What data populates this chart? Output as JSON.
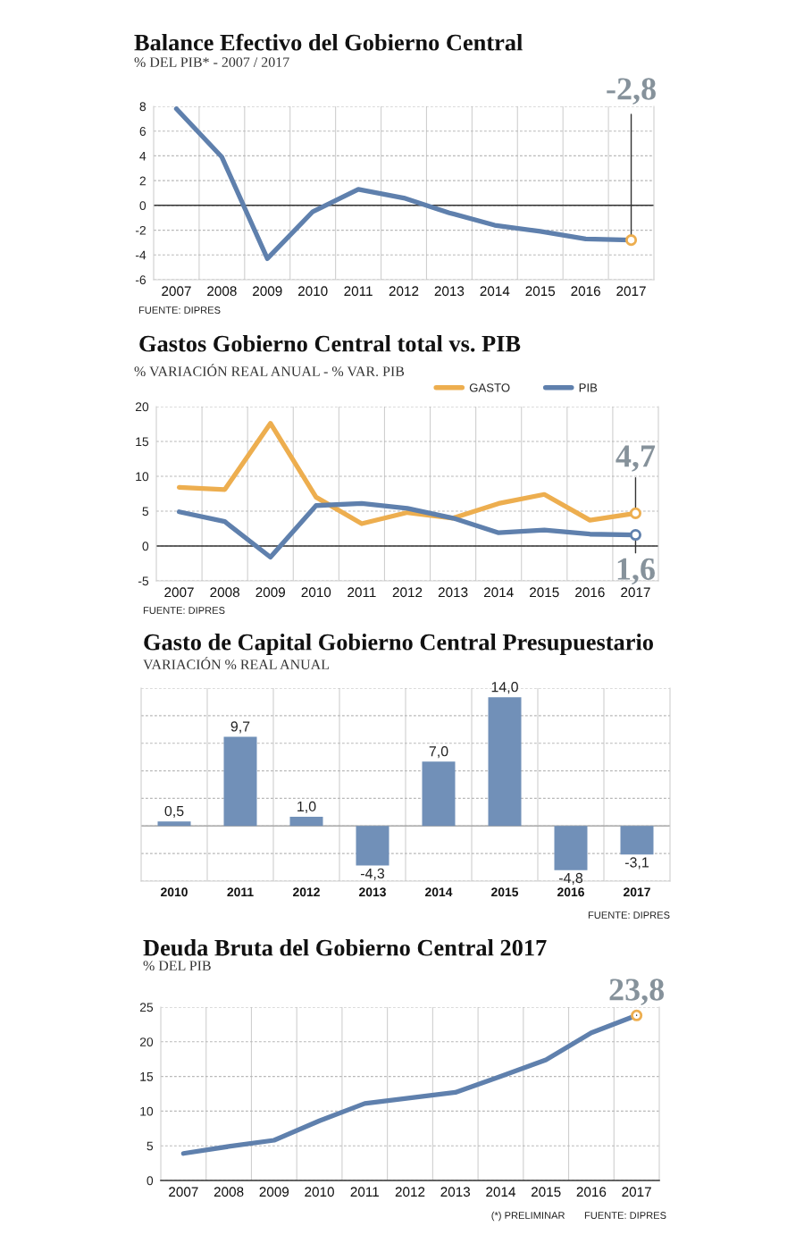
{
  "chart_data": [
    {
      "type": "line",
      "title": "Balance Efectivo del Gobierno Central",
      "subtitle": "% DEL PIB* - 2007 / 2017",
      "categories": [
        "2007",
        "2008",
        "2009",
        "2010",
        "2011",
        "2012",
        "2013",
        "2014",
        "2015",
        "2016",
        "2017"
      ],
      "series": [
        {
          "color": "#5f80ad",
          "values": [
            7.8,
            3.9,
            -4.3,
            -0.5,
            1.3,
            0.6,
            -0.6,
            -1.6,
            -2.1,
            -2.7,
            -2.8
          ]
        },
        {
          "type": "scatter",
          "color": "#edae4f",
          "values": [
            null,
            null,
            null,
            null,
            null,
            null,
            null,
            null,
            null,
            null,
            -2.8
          ],
          "marker": "circle"
        }
      ],
      "ylim": [
        -6,
        8
      ],
      "yticks": [
        -6,
        -4,
        -2,
        0,
        2,
        4,
        6,
        8
      ],
      "grid": true,
      "ref_lines": [
        {
          "axis": "y",
          "value": 0,
          "color": "#333333"
        }
      ],
      "annotations": [
        {
          "text": "-2,8",
          "x": "2017",
          "y": -2.8
        },
        "FUENTE: DIPRES"
      ]
    },
    {
      "type": "line",
      "title": "Gastos Gobierno Central total vs. PIB",
      "subtitle": "% VARIACIÓN REAL ANUAL - % VAR. PIB",
      "categories": [
        "2007",
        "2008",
        "2009",
        "2010",
        "2011",
        "2012",
        "2013",
        "2014",
        "2015",
        "2016",
        "2017"
      ],
      "series": [
        {
          "name": "GASTO",
          "color": "#edae4f",
          "values": [
            8.4,
            8.1,
            17.6,
            7.0,
            3.2,
            4.8,
            4.0,
            6.1,
            7.4,
            3.7,
            4.7
          ]
        },
        {
          "name": "PIB",
          "color": "#5f80ad",
          "values": [
            4.9,
            3.5,
            -1.6,
            5.8,
            6.1,
            5.4,
            4.0,
            1.9,
            2.3,
            1.7,
            1.6
          ]
        },
        {
          "type": "scatter",
          "color": "#edae4f",
          "values": [
            null,
            null,
            null,
            null,
            null,
            null,
            null,
            null,
            null,
            null,
            4.7
          ],
          "marker": "circle"
        },
        {
          "type": "scatter",
          "color": "#5f80ad",
          "values": [
            null,
            null,
            null,
            null,
            null,
            null,
            null,
            null,
            null,
            null,
            1.6
          ],
          "marker": "circle"
        }
      ],
      "ylim": [
        -5,
        20
      ],
      "yticks": [
        -5,
        0,
        5,
        10,
        15,
        20
      ],
      "grid": true,
      "legend": "top right",
      "ref_lines": [
        {
          "axis": "y",
          "value": 0,
          "color": "#333333"
        }
      ],
      "annotations": [
        {
          "text": "4,7",
          "x": "2017",
          "y": 4.7
        },
        {
          "text": "1,6",
          "x": "2017",
          "y": 1.6
        },
        "FUENTE: DIPRES"
      ]
    },
    {
      "type": "bar",
      "title": "Gasto de Capital Gobierno Central Presupuestario",
      "subtitle": "VARIACIÓN % REAL ANUAL",
      "categories": [
        "2010",
        "2011",
        "2012",
        "2013",
        "2014",
        "2015",
        "2016",
        "2017"
      ],
      "values": [
        0.5,
        9.7,
        1.0,
        -4.3,
        7.0,
        14.0,
        -4.8,
        -3.1
      ],
      "value_labels": [
        "0,5",
        "9,7",
        "1,0",
        "-4,3",
        "7,0",
        "14,0",
        "-4,8",
        "-3,1"
      ],
      "color": "#7190b8",
      "ylim": [
        -6,
        15
      ],
      "yticks": [
        {
          "value": -6,
          "label": null
        },
        {
          "value": -3,
          "label": null
        },
        {
          "value": 0,
          "label": null
        },
        {
          "value": 3,
          "label": null
        },
        {
          "value": 6,
          "label": null
        },
        {
          "value": 9,
          "label": null
        },
        {
          "value": 12,
          "label": null
        },
        {
          "value": 15,
          "label": null
        }
      ],
      "tick_labels": "x",
      "grid": true,
      "ref_lines": [
        {
          "axis": "y",
          "value": 0,
          "color": "#a8a8a8"
        }
      ],
      "annotations": [
        "FUENTE: DIPRES"
      ]
    },
    {
      "type": "line",
      "title": "Deuda Bruta del Gobierno Central 2017",
      "subtitle": "% DEL PIB",
      "categories": [
        "2007",
        "2008",
        "2009",
        "2010",
        "2011",
        "2012",
        "2013",
        "2014",
        "2015",
        "2016",
        "2017"
      ],
      "series": [
        {
          "color": "#5f80ad",
          "values": [
            3.9,
            4.9,
            5.8,
            8.6,
            11.1,
            11.9,
            12.7,
            15.0,
            17.4,
            21.3,
            23.8
          ]
        },
        {
          "type": "scatter",
          "color": "#edae4f",
          "values": [
            null,
            null,
            null,
            null,
            null,
            null,
            null,
            null,
            null,
            null,
            23.8
          ],
          "marker": "circle"
        }
      ],
      "ylim": [
        0,
        25
      ],
      "yticks": [
        0,
        5,
        10,
        15,
        20,
        25
      ],
      "grid": true,
      "annotations": [
        {
          "text": "23,8",
          "x": "2017",
          "y": 23.8
        },
        "(*) PRELIMINAR",
        "FUENTE: DIPRES"
      ]
    }
  ]
}
